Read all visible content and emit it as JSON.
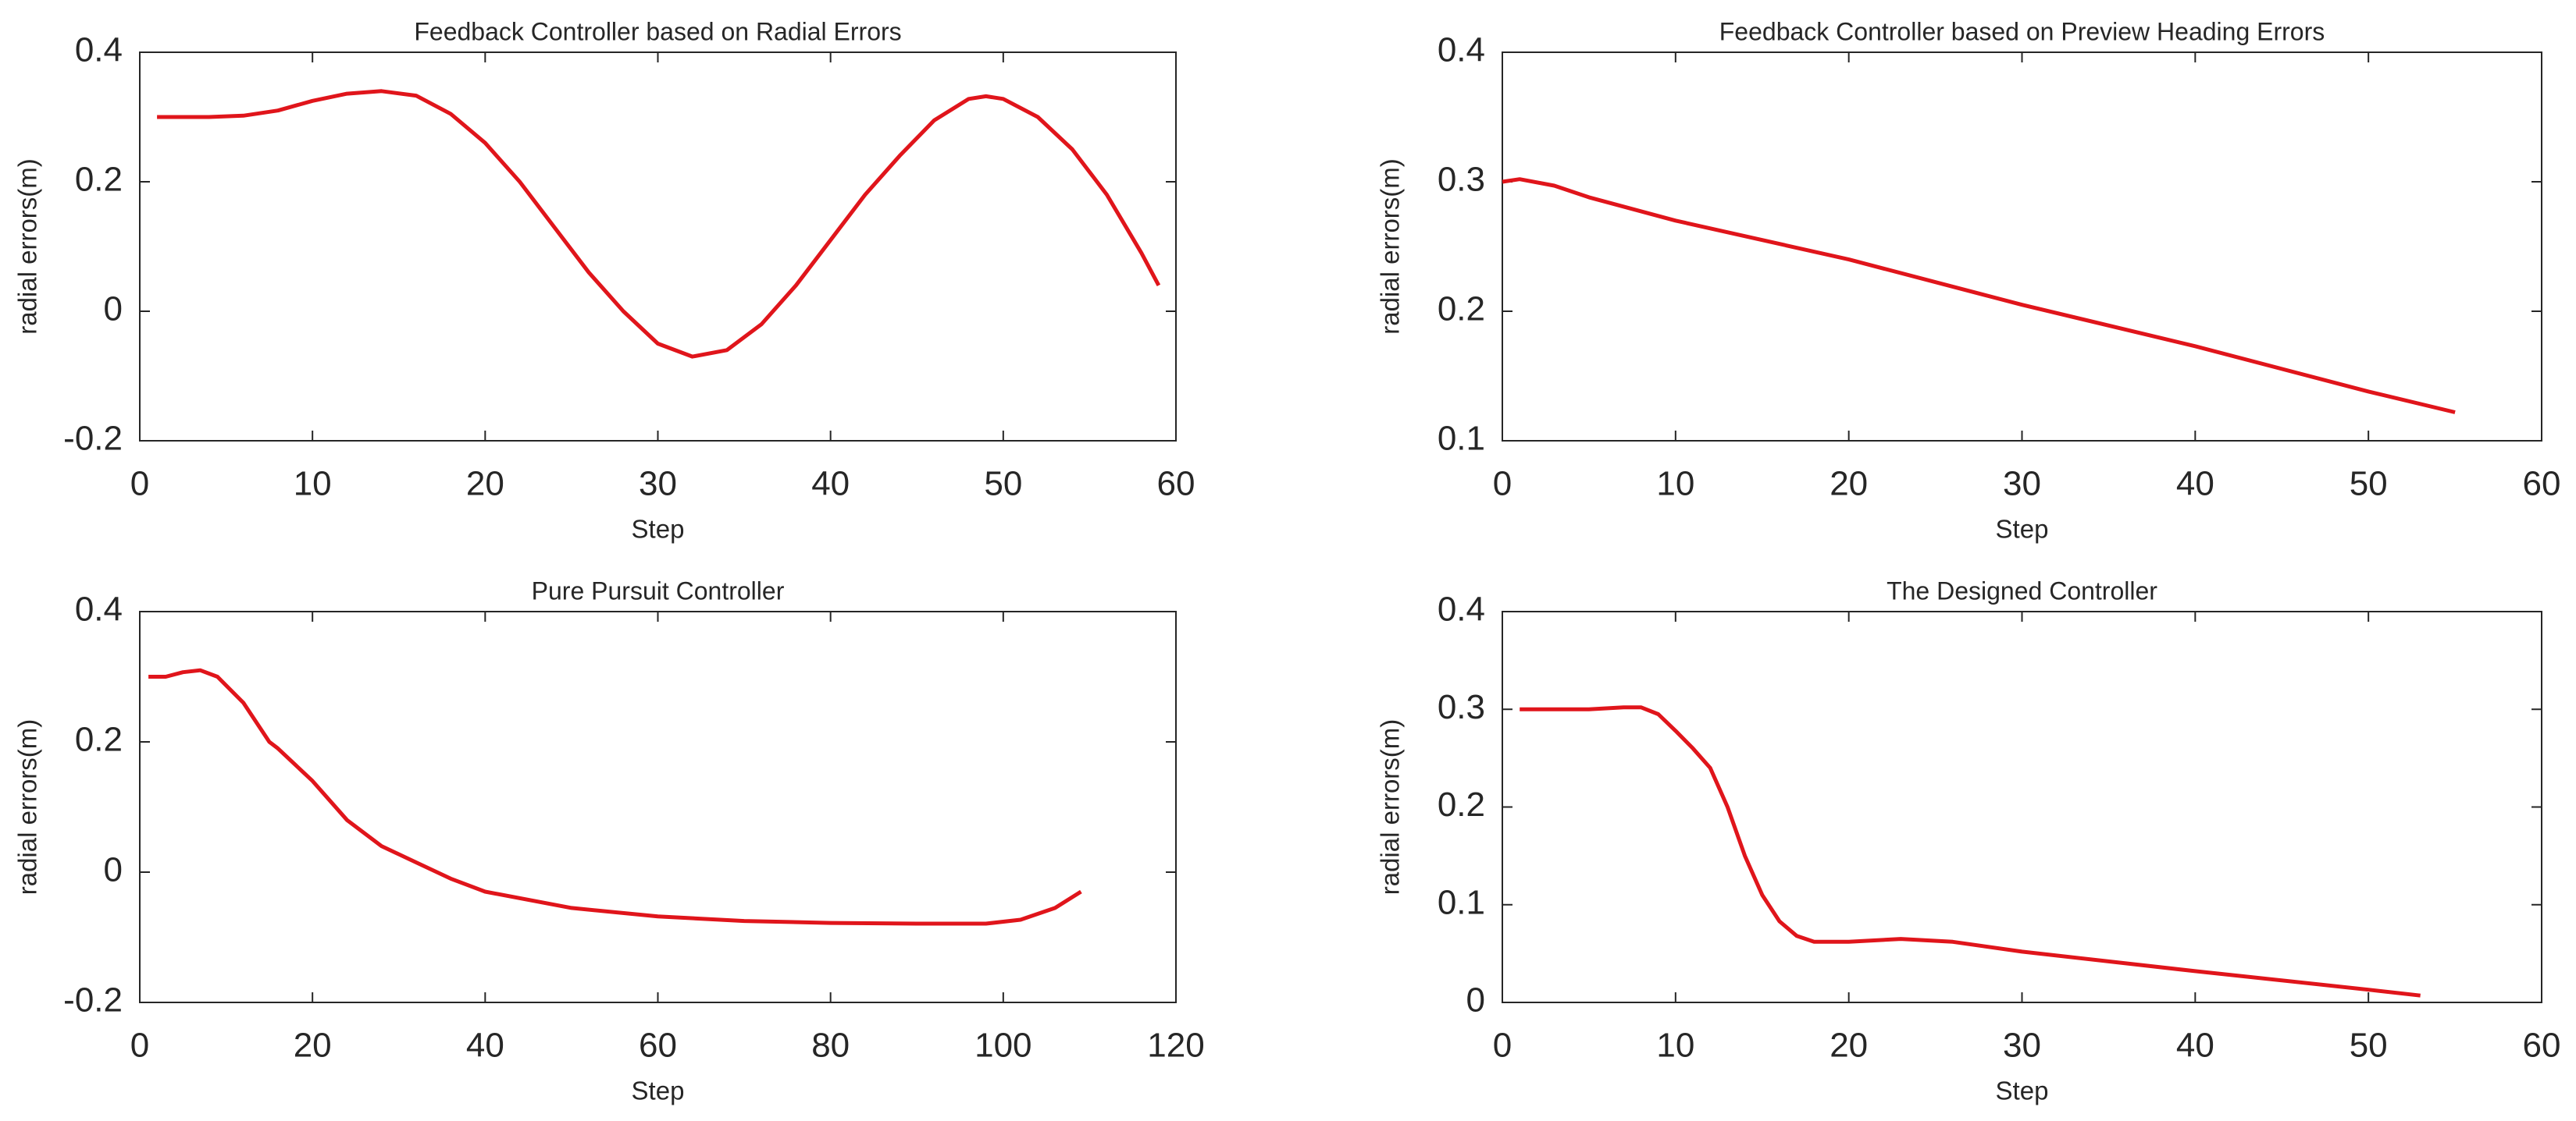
{
  "chart_data": [
    {
      "type": "line",
      "title": "Feedback Controller based on Radial Errors",
      "xlabel": "Step",
      "ylabel": "radial errors(m)",
      "x": [
        1,
        4,
        6,
        8,
        10,
        12,
        14,
        16,
        18,
        20,
        22,
        24,
        26,
        28,
        30,
        32,
        34,
        36,
        38,
        40,
        42,
        44,
        46,
        48,
        49,
        50,
        52,
        54,
        56,
        58,
        59
      ],
      "values": [
        0.3,
        0.3,
        0.302,
        0.31,
        0.325,
        0.336,
        0.34,
        0.333,
        0.305,
        0.26,
        0.2,
        0.13,
        0.06,
        0.0,
        -0.05,
        -0.07,
        -0.06,
        -0.02,
        0.04,
        0.11,
        0.18,
        0.24,
        0.295,
        0.328,
        0.332,
        0.328,
        0.3,
        0.25,
        0.18,
        0.09,
        0.04
      ],
      "color": "#e0151b",
      "xlim": [
        0,
        60
      ],
      "ylim": [
        -0.2,
        0.4
      ],
      "xticks": [
        0,
        10,
        20,
        30,
        40,
        50,
        60
      ],
      "yticks": [
        -0.2,
        0,
        0.2,
        0.4
      ]
    },
    {
      "type": "line",
      "title": "Feedback Controller based on Preview Heading Errors",
      "xlabel": "Step",
      "ylabel": "radial errors(m)",
      "x": [
        0,
        1,
        3,
        5,
        10,
        20,
        30,
        40,
        50,
        55
      ],
      "values": [
        0.3,
        0.302,
        0.297,
        0.288,
        0.27,
        0.24,
        0.205,
        0.173,
        0.138,
        0.122
      ],
      "color": "#e0151b",
      "xlim": [
        0,
        60
      ],
      "ylim": [
        0.1,
        0.4
      ],
      "xticks": [
        0,
        10,
        20,
        30,
        40,
        50,
        60
      ],
      "yticks": [
        0.1,
        0.2,
        0.3,
        0.4
      ]
    },
    {
      "type": "line",
      "title": "Pure Pursuit Controller",
      "xlabel": "Step",
      "ylabel": "radial errors(m)",
      "x": [
        1,
        3,
        5,
        7,
        9,
        12,
        15,
        16,
        20,
        24,
        28,
        32,
        36,
        40,
        50,
        60,
        70,
        80,
        90,
        98,
        102,
        106,
        109
      ],
      "values": [
        0.3,
        0.3,
        0.307,
        0.31,
        0.3,
        0.26,
        0.2,
        0.19,
        0.14,
        0.08,
        0.04,
        0.015,
        -0.01,
        -0.03,
        -0.055,
        -0.068,
        -0.075,
        -0.078,
        -0.079,
        -0.079,
        -0.073,
        -0.055,
        -0.03
      ],
      "color": "#e0151b",
      "xlim": [
        0,
        120
      ],
      "ylim": [
        -0.2,
        0.4
      ],
      "xticks": [
        0,
        20,
        40,
        60,
        80,
        100,
        120
      ],
      "yticks": [
        -0.2,
        0,
        0.2,
        0.4
      ]
    },
    {
      "type": "line",
      "title": "The Designed Controller",
      "xlabel": "Step",
      "ylabel": "radial errors(m)",
      "x": [
        1,
        5,
        7,
        8,
        9,
        10,
        11,
        12,
        13,
        14,
        15,
        16,
        17,
        18,
        20,
        23,
        26,
        30,
        40,
        50,
        53
      ],
      "values": [
        0.3,
        0.3,
        0.302,
        0.302,
        0.295,
        0.278,
        0.26,
        0.24,
        0.2,
        0.15,
        0.11,
        0.083,
        0.068,
        0.062,
        0.062,
        0.065,
        0.062,
        0.052,
        0.032,
        0.013,
        0.007
      ],
      "color": "#e0151b",
      "xlim": [
        0,
        60
      ],
      "ylim": [
        0,
        0.4
      ],
      "xticks": [
        0,
        10,
        20,
        30,
        40,
        50,
        60
      ],
      "yticks": [
        0,
        0.1,
        0.2,
        0.3,
        0.4
      ]
    }
  ]
}
